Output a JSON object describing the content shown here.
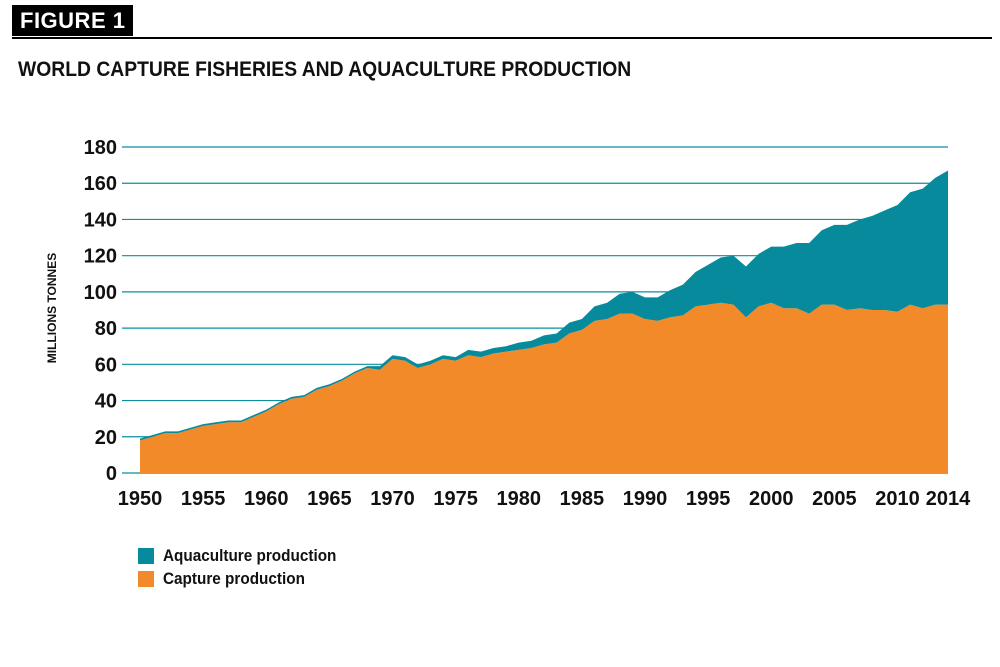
{
  "figure_label": "FIGURE 1",
  "chart_data": {
    "type": "area",
    "stacked": true,
    "title": "WORLD CAPTURE FISHERIES AND AQUACULTURE PRODUCTION",
    "ylabel": "MILLIONS TONNES",
    "xlabel": "",
    "ylim": [
      0,
      180
    ],
    "yticks": [
      0,
      20,
      40,
      60,
      80,
      100,
      120,
      140,
      160,
      180
    ],
    "xticks": [
      1950,
      1955,
      1960,
      1965,
      1970,
      1975,
      1980,
      1985,
      1990,
      1995,
      2000,
      2005,
      2010,
      2014
    ],
    "grid": "horizontal",
    "legend_position": "bottom-left",
    "x": [
      1950,
      1951,
      1952,
      1953,
      1954,
      1955,
      1956,
      1957,
      1958,
      1959,
      1960,
      1961,
      1962,
      1963,
      1964,
      1965,
      1966,
      1967,
      1968,
      1969,
      1970,
      1971,
      1972,
      1973,
      1974,
      1975,
      1976,
      1977,
      1978,
      1979,
      1980,
      1981,
      1982,
      1983,
      1984,
      1985,
      1986,
      1987,
      1988,
      1989,
      1990,
      1991,
      1992,
      1993,
      1994,
      1995,
      1996,
      1997,
      1998,
      1999,
      2000,
      2001,
      2002,
      2003,
      2004,
      2005,
      2006,
      2007,
      2008,
      2009,
      2010,
      2011,
      2012,
      2013,
      2014
    ],
    "series": [
      {
        "name": "Capture production",
        "color": "#f28a2a",
        "values": [
          18,
          20,
          22,
          22,
          24,
          26,
          27,
          28,
          28,
          31,
          34,
          38,
          41,
          42,
          46,
          48,
          51,
          55,
          58,
          57,
          63,
          62,
          58,
          60,
          63,
          62,
          65,
          64,
          66,
          67,
          68,
          69,
          71,
          72,
          77,
          79,
          84,
          85,
          88,
          88,
          85,
          84,
          86,
          87,
          92,
          93,
          94,
          93,
          86,
          92,
          94,
          91,
          91,
          88,
          93,
          93,
          90,
          91,
          90,
          90,
          89,
          93,
          91,
          93,
          93
        ]
      },
      {
        "name": "Aquaculture production",
        "color": "#078b9c",
        "values": [
          1,
          1,
          1,
          1,
          1,
          1,
          1,
          1,
          1,
          1,
          1,
          1,
          1,
          1,
          1,
          1,
          1,
          1,
          1,
          2,
          2,
          2,
          2,
          2,
          2,
          2,
          3,
          3,
          3,
          3,
          4,
          4,
          5,
          5,
          6,
          6,
          8,
          9,
          11,
          12,
          12,
          13,
          15,
          17,
          19,
          22,
          25,
          27,
          28,
          29,
          31,
          34,
          36,
          39,
          41,
          44,
          47,
          49,
          52,
          55,
          59,
          62,
          66,
          70,
          74
        ]
      }
    ]
  }
}
